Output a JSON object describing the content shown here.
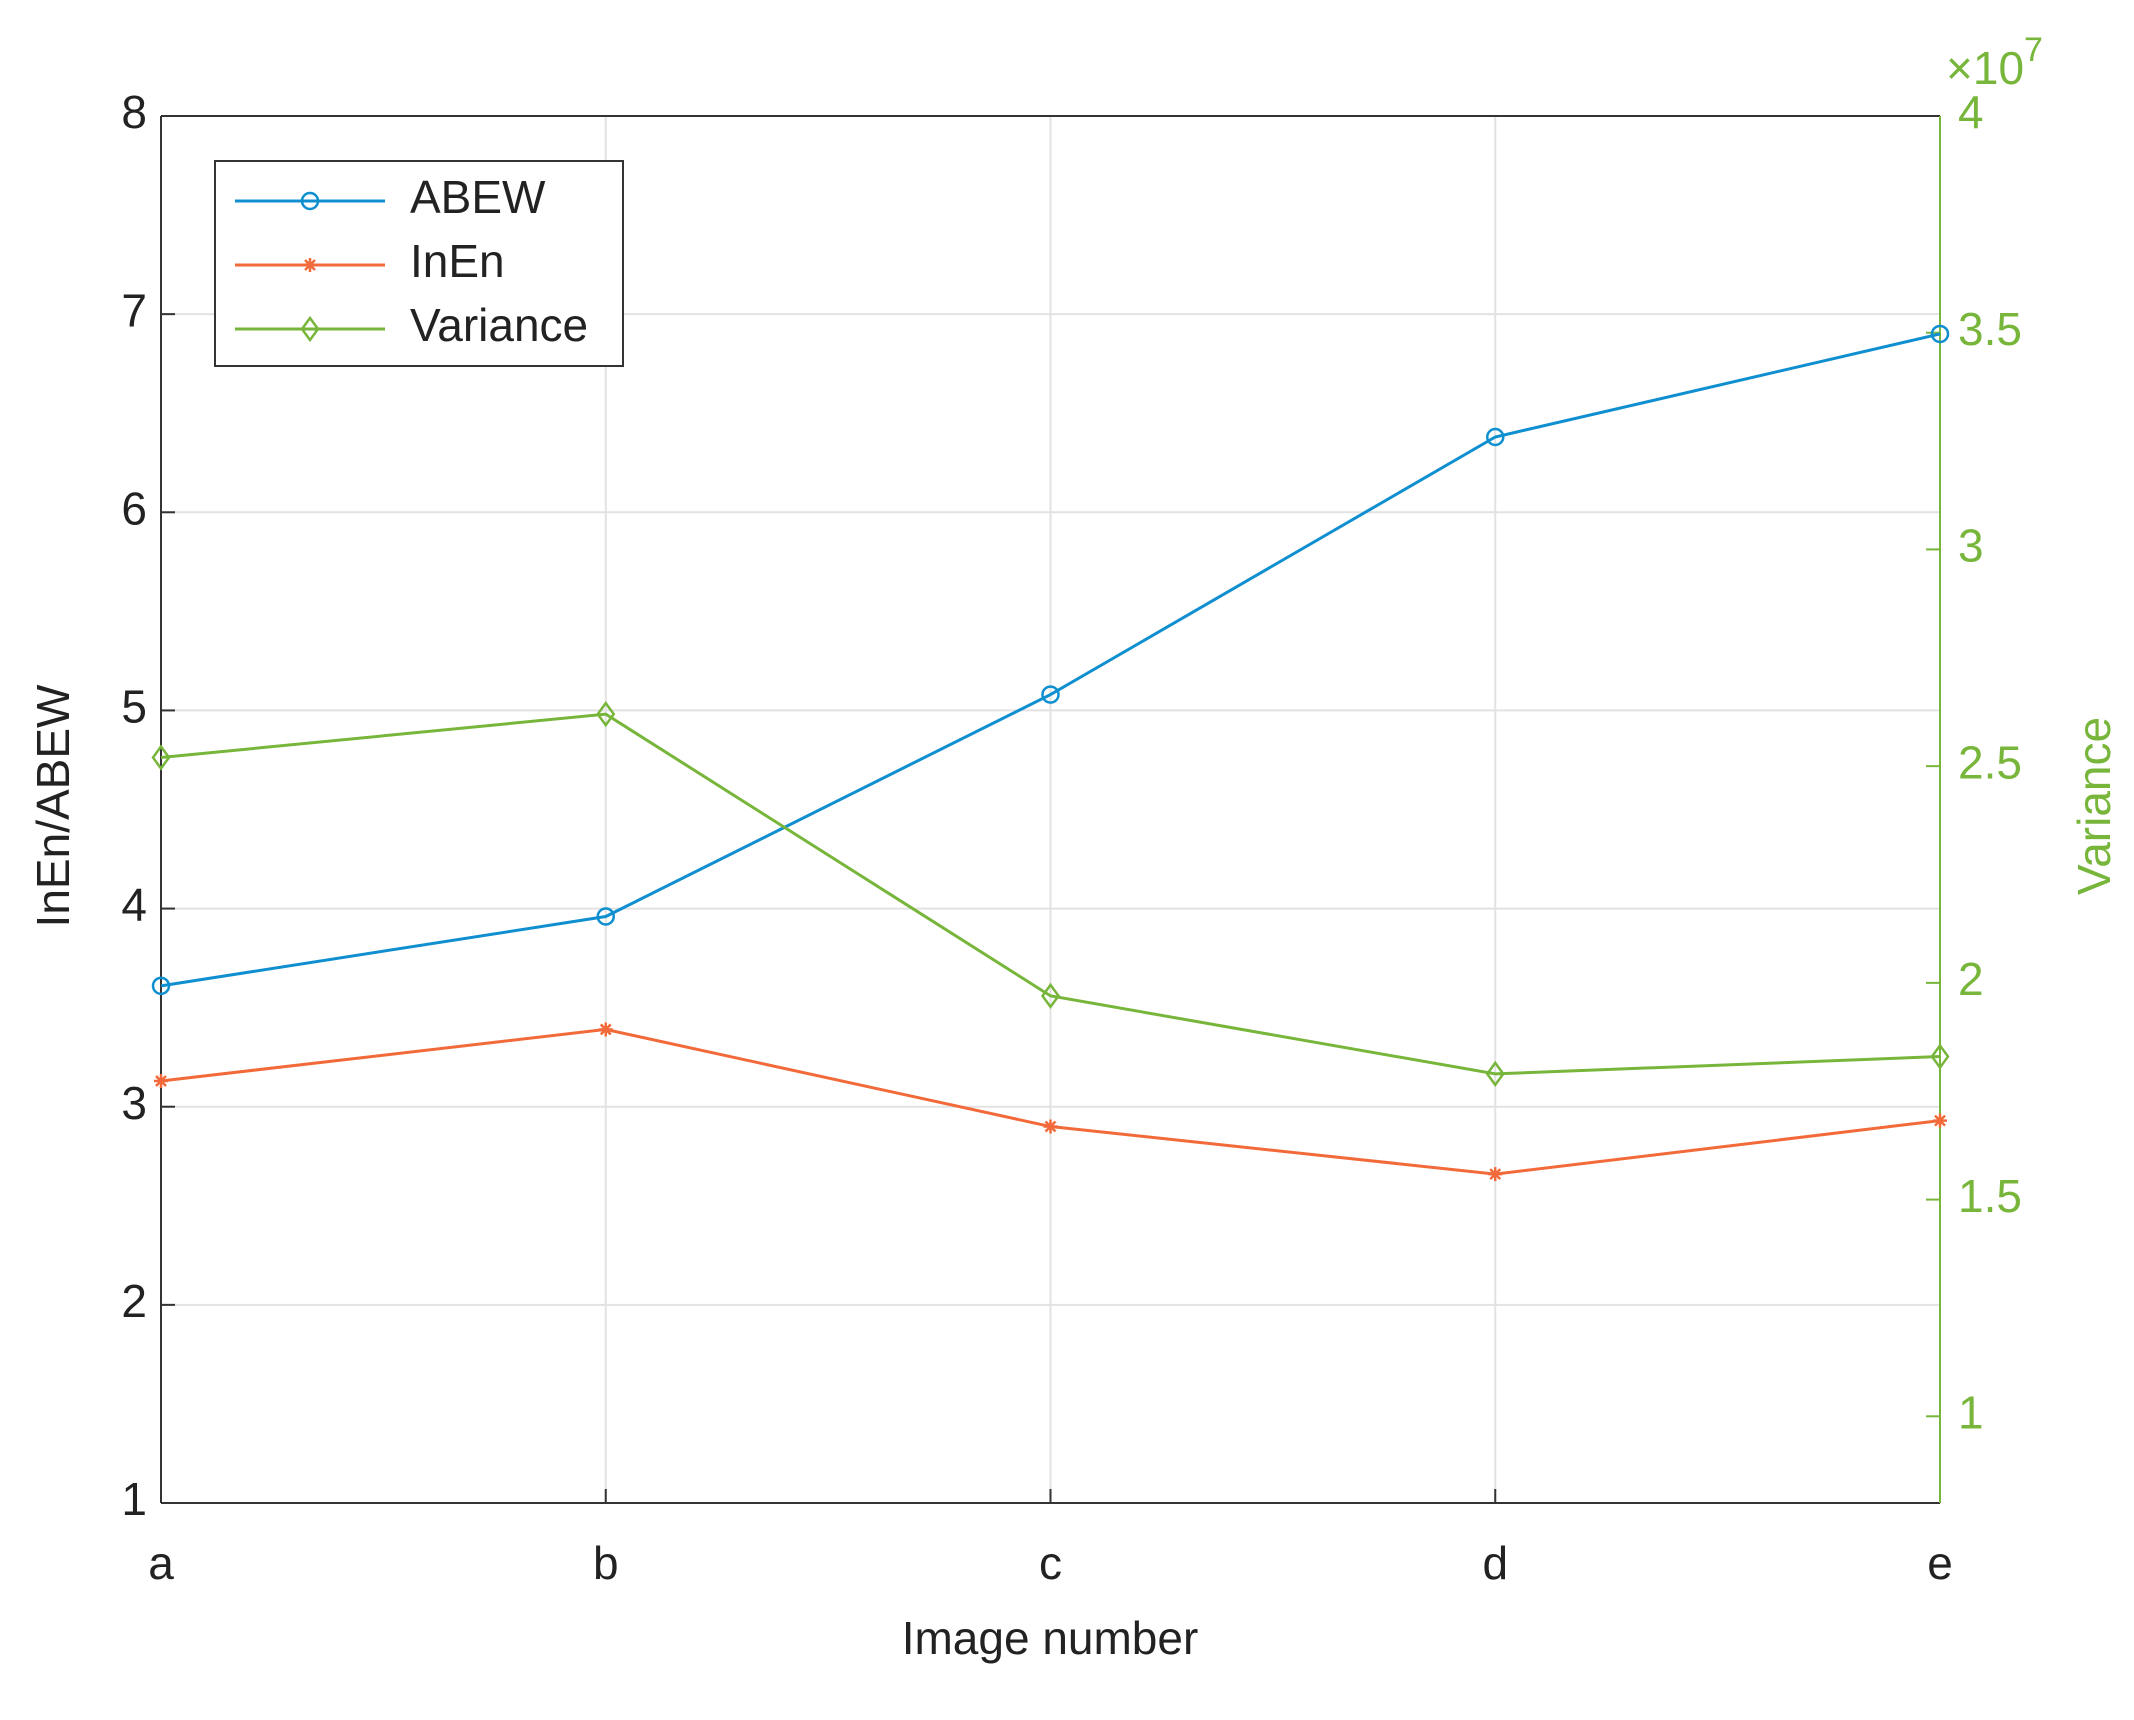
{
  "chart_data": {
    "type": "line",
    "xlabel": "Image number",
    "ylabel": "InEn/ABEW",
    "y2label": "Variance",
    "y2_multiplier": "×10",
    "y2_multiplier_exponent": "7",
    "categories": [
      "a",
      "b",
      "c",
      "d",
      "e"
    ],
    "series": [
      {
        "name": "ABEW",
        "color": "#0f8fd0",
        "marker": "circle",
        "values": [
          3.61,
          3.96,
          5.08,
          6.38,
          6.9
        ]
      },
      {
        "name": "InEn",
        "color": "#f26a3a",
        "marker": "asterisk",
        "values": [
          3.13,
          3.39,
          2.9,
          2.66,
          2.93
        ]
      },
      {
        "name": "Variance",
        "color": "#77b63a",
        "marker": "diamond",
        "axis": "y2",
        "values": [
          25200000,
          26200000,
          19700000,
          17900000,
          18300000
        ]
      }
    ],
    "ylim": [
      1,
      8
    ],
    "yticks": [
      1,
      2,
      3,
      4,
      5,
      6,
      7,
      8
    ],
    "y2lim": [
      8000000,
      40000000
    ],
    "y2ticks": [
      {
        "value": 10000000,
        "label": "1"
      },
      {
        "value": 15000000,
        "label": "1.5"
      },
      {
        "value": 20000000,
        "label": "2"
      },
      {
        "value": 25000000,
        "label": "2.5"
      },
      {
        "value": 30000000,
        "label": "3"
      },
      {
        "value": 35000000,
        "label": "3.5"
      },
      {
        "value": 40000000,
        "label": "4"
      }
    ],
    "y2color": "#77b63a",
    "grid": true,
    "legend": "upper left"
  }
}
